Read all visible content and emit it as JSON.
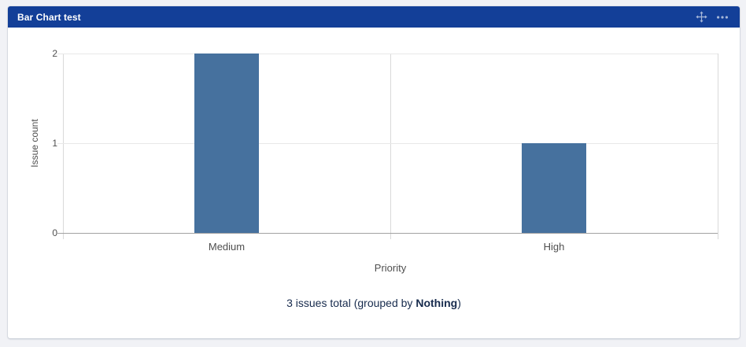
{
  "gadget": {
    "title": "Bar Chart test",
    "header_icons": [
      {
        "name": "move-icon",
        "meaning": "drag to move gadget"
      },
      {
        "name": "more-options-icon",
        "meaning": "gadget menu (ellipsis)"
      }
    ]
  },
  "chart_data": {
    "type": "bar",
    "categories": [
      "Medium",
      "High"
    ],
    "values": [
      2,
      1
    ],
    "title": "Bar Chart test",
    "xlabel": "Priority",
    "ylabel": "Issue count",
    "ylim": [
      0,
      2
    ],
    "yticks": [
      0,
      1,
      2
    ],
    "grid": true,
    "legend_position": "none",
    "bar_color": "#46719e"
  },
  "summary": {
    "prefix": "3 issues total (grouped by ",
    "bold": "Nothing",
    "suffix": ")"
  },
  "colors": {
    "header_bg": "#133f98",
    "header_text": "#ffffff",
    "bar": "#46719e",
    "axis_text": "#4f4f4f",
    "summary_text": "#172b4d",
    "page_bg": "#f1f2f6",
    "card_bg": "#ffffff"
  }
}
